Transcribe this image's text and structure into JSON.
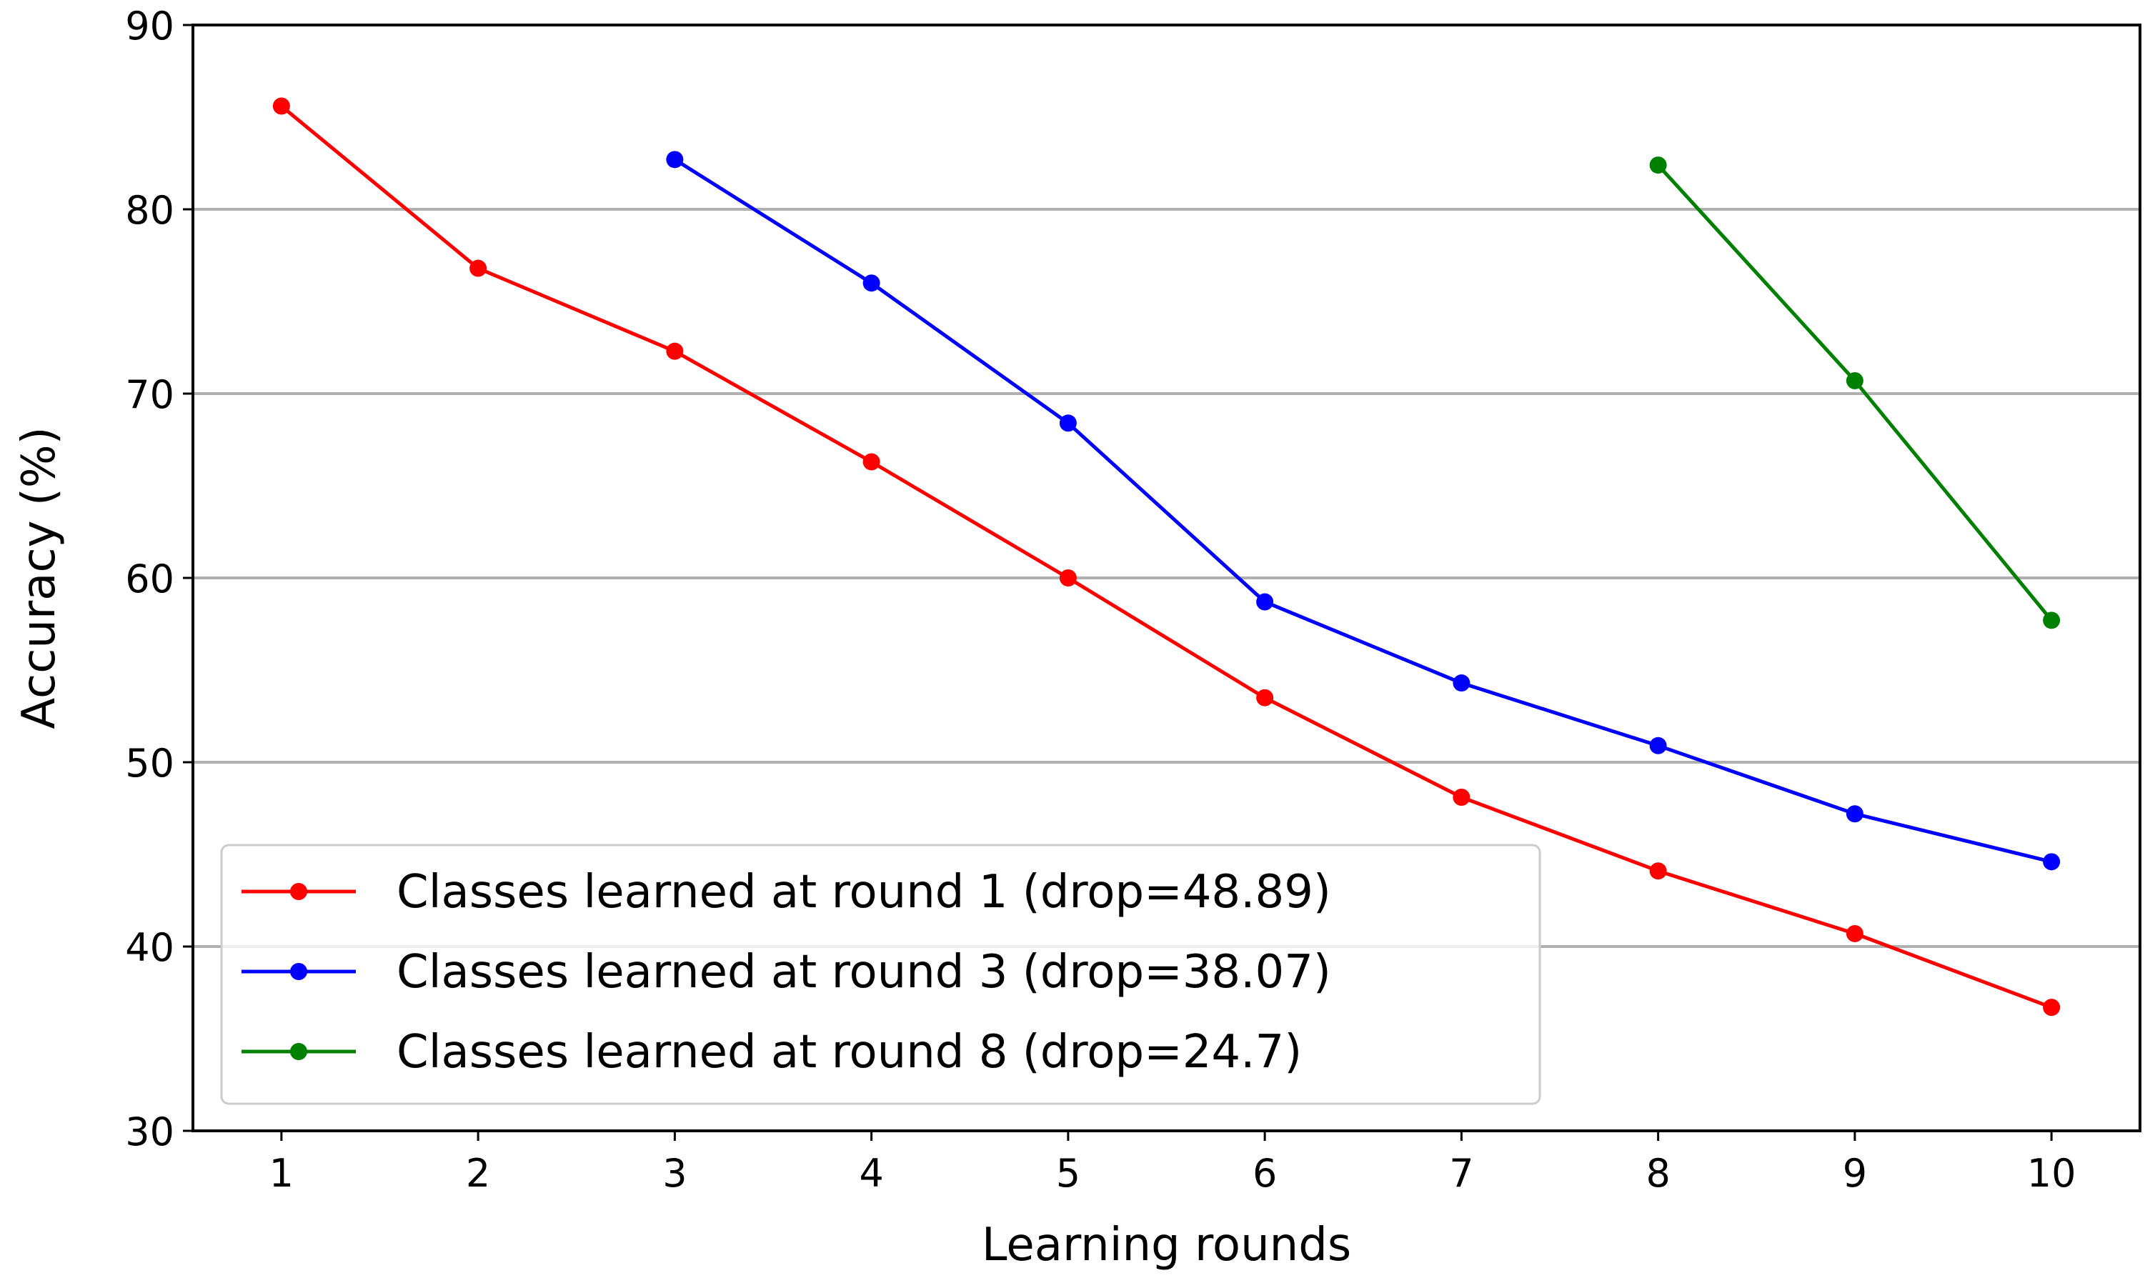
{
  "chart_data": {
    "type": "line",
    "title": "",
    "xlabel": "Learning rounds",
    "ylabel": "Accuracy (%)",
    "xlim": [
      0.55,
      10.45
    ],
    "ylim": [
      30,
      90
    ],
    "x_ticks": [
      1,
      2,
      3,
      4,
      5,
      6,
      7,
      8,
      9,
      10
    ],
    "y_ticks": [
      30,
      40,
      50,
      60,
      70,
      80,
      90
    ],
    "grid": "horizontal",
    "legend_position": "lower-left",
    "series": [
      {
        "name": "Classes learned at round 1 (drop=48.89)",
        "color": "#ff0000",
        "x": [
          1,
          2,
          3,
          4,
          5,
          6,
          7,
          8,
          9,
          10
        ],
        "y": [
          85.6,
          76.8,
          72.3,
          66.3,
          60.0,
          53.5,
          48.1,
          44.1,
          40.7,
          36.7
        ]
      },
      {
        "name": "Classes learned at round 3 (drop=38.07)",
        "color": "#0000ff",
        "x": [
          3,
          4,
          5,
          6,
          7,
          8,
          9,
          10
        ],
        "y": [
          82.7,
          76.0,
          68.4,
          58.7,
          54.3,
          50.9,
          47.2,
          44.6
        ]
      },
      {
        "name": "Classes learned at round 8 (drop=24.7)",
        "color": "#008000",
        "x": [
          8,
          9,
          10
        ],
        "y": [
          82.4,
          70.7,
          57.7
        ]
      }
    ]
  }
}
